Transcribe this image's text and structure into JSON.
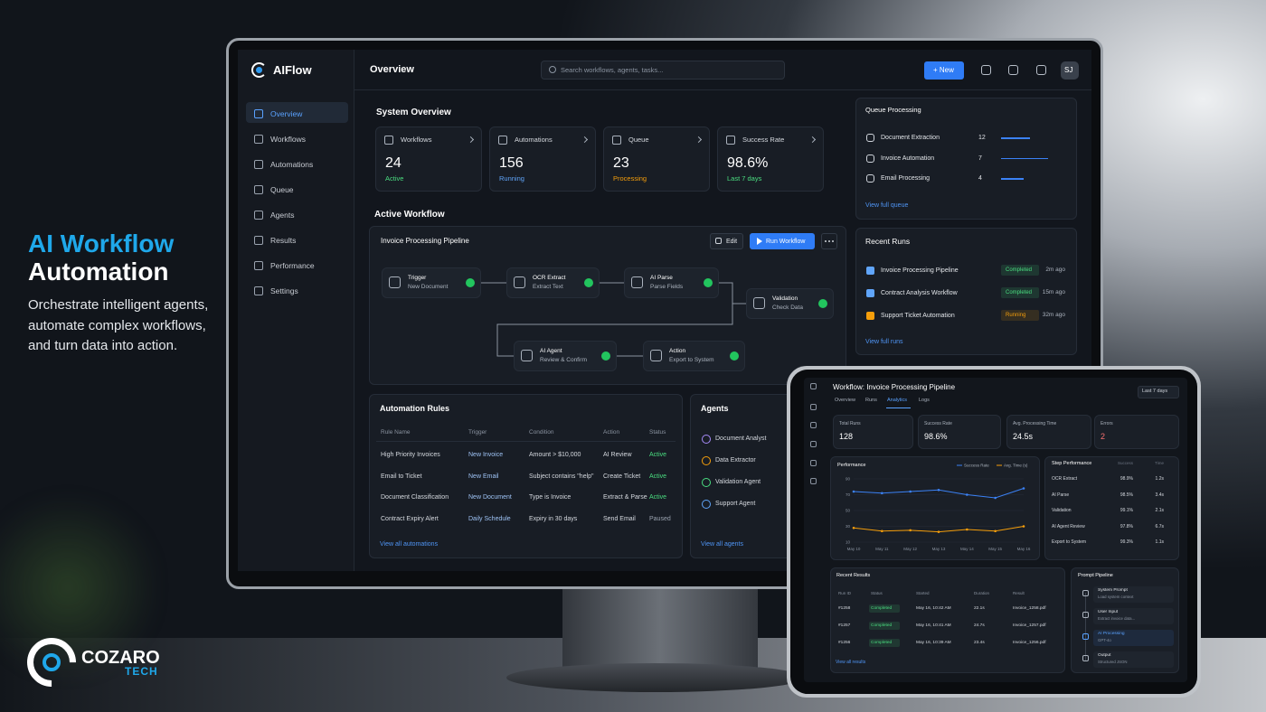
{
  "promo": {
    "title_line1": "AI Workflow",
    "title_line2": "Automation",
    "tagline": [
      "Orchestrate intelligent agents,",
      "automate complex workflows,",
      "and turn data into action."
    ]
  },
  "brand": {
    "name": "COZARO",
    "suffix": "TECH"
  },
  "app": {
    "logo": "AIFlow",
    "page_title": "Overview",
    "search_placeholder": "Search workflows, agents, tasks...",
    "new_button": "+ New",
    "avatar": "SJ",
    "nav": [
      "Overview",
      "Workflows",
      "Automations",
      "Queue",
      "Agents",
      "Results",
      "Performance",
      "Settings"
    ],
    "system_overview": {
      "title": "System Overview",
      "cards": [
        {
          "label": "Workflows",
          "value": "24",
          "sub": "Active",
          "color": "#4ade80"
        },
        {
          "label": "Automations",
          "value": "156",
          "sub": "Running",
          "color": "#60a5fa"
        },
        {
          "label": "Queue",
          "value": "23",
          "sub": "Processing",
          "color": "#f59e0b"
        },
        {
          "label": "Success Rate",
          "value": "98.6%",
          "sub": "Last 7 days",
          "color": "#4ade80"
        }
      ]
    },
    "active_workflow": {
      "title": "Active Workflow",
      "name": "Invoice Processing Pipeline",
      "edit": "Edit",
      "run": "Run Workflow",
      "nodes": [
        {
          "title": "Trigger",
          "subtitle": "New Document"
        },
        {
          "title": "OCR Extract",
          "subtitle": "Extract Text"
        },
        {
          "title": "AI Parse",
          "subtitle": "Parse Fields"
        },
        {
          "title": "Validation",
          "subtitle": "Check Data"
        },
        {
          "title": "AI Agent",
          "subtitle": "Review & Confirm"
        },
        {
          "title": "Action",
          "subtitle": "Export to System"
        }
      ]
    },
    "automation_rules": {
      "title": "Automation Rules",
      "columns": [
        "Rule Name",
        "Trigger",
        "Condition",
        "Action",
        "Status"
      ],
      "rows": [
        [
          "High Priority Invoices",
          "New Invoice",
          "Amount > $10,000",
          "AI Review",
          "Active"
        ],
        [
          "Email to Ticket",
          "New Email",
          "Subject contains \"help\"",
          "Create Ticket",
          "Active"
        ],
        [
          "Document Classification",
          "New Document",
          "Type is Invoice",
          "Extract & Parse",
          "Active"
        ],
        [
          "Contract Expiry Alert",
          "Daily Schedule",
          "Expiry in 30 days",
          "Send Email",
          "Paused"
        ]
      ],
      "status_colors": [
        "#4ade80",
        "#4ade80",
        "#4ade80",
        "#9aa3af"
      ],
      "link": "View all automations"
    },
    "agents": {
      "title": "Agents",
      "items": [
        {
          "name": "Document Analyst",
          "color": "#a78bfa"
        },
        {
          "name": "Data Extractor",
          "color": "#f59e0b"
        },
        {
          "name": "Validation Agent",
          "color": "#4ade80"
        },
        {
          "name": "Support Agent",
          "color": "#60a5fa"
        }
      ],
      "link": "View all agents"
    },
    "queue": {
      "title": "Queue Processing",
      "items": [
        {
          "name": "Document Extraction",
          "count": "12"
        },
        {
          "name": "Invoice Automation",
          "count": "7"
        },
        {
          "name": "Email Processing",
          "count": "4"
        }
      ],
      "link": "View full queue"
    },
    "recent_runs": {
      "title": "Recent Runs",
      "items": [
        {
          "name": "Invoice Processing Pipeline",
          "status": "Completed",
          "time": "2m ago",
          "icon_color": "#60a5fa",
          "status_color": "#4ade80"
        },
        {
          "name": "Contract Analysis Workflow",
          "status": "Completed",
          "time": "15m ago",
          "icon_color": "#60a5fa",
          "status_color": "#4ade80"
        },
        {
          "name": "Support Ticket Automation",
          "status": "Running",
          "time": "32m ago",
          "icon_color": "#f59e0b",
          "status_color": "#f59e0b"
        }
      ],
      "link": "View full runs"
    }
  },
  "tablet": {
    "title": "Workflow: Invoice Processing Pipeline",
    "range": "Last 7 days",
    "tabs": [
      "Overview",
      "Runs",
      "Analytics",
      "Logs"
    ],
    "stats": [
      {
        "label": "Total Runs",
        "value": "128"
      },
      {
        "label": "Success Rate",
        "value": "98.6%"
      },
      {
        "label": "Avg. Processing Time",
        "value": "24.5s"
      },
      {
        "label": "Errors",
        "value": "2"
      }
    ],
    "performance": {
      "type": "line",
      "title": "Performance",
      "x": [
        "May 10",
        "May 11",
        "May 12",
        "May 13",
        "May 14",
        "May 15",
        "May 16"
      ],
      "series": [
        {
          "name": "Success Rate",
          "color": "#3b82f6",
          "values": [
            74,
            72,
            74,
            76,
            70,
            66,
            78
          ]
        },
        {
          "name": "Avg. Time (s)",
          "color": "#f59e0b",
          "values": [
            28,
            24,
            25,
            23,
            26,
            24,
            30
          ]
        }
      ],
      "ylim": [
        10,
        90
      ],
      "yticks": [
        10,
        30,
        50,
        70,
        90
      ],
      "grid": true
    },
    "step_performance": {
      "title": "Step Performance",
      "columns": [
        "Success",
        "Time"
      ],
      "rows": [
        [
          "OCR Extract",
          "98.9%",
          "1.2s"
        ],
        [
          "AI Parse",
          "98.5%",
          "3.4s"
        ],
        [
          "Validation",
          "99.1%",
          "2.1s"
        ],
        [
          "AI Agent Review",
          "97.8%",
          "6.7s"
        ],
        [
          "Export to System",
          "99.3%",
          "1.1s"
        ]
      ]
    },
    "recent_results": {
      "title": "Recent Results",
      "columns": [
        "Run ID",
        "Status",
        "Started",
        "Duration",
        "Result"
      ],
      "rows": [
        [
          "#1258",
          "Completed",
          "May 16, 10:42 AM",
          "22.1s",
          "Invoice_1258.pdf"
        ],
        [
          "#1257",
          "Completed",
          "May 16, 10:41 AM",
          "24.7s",
          "Invoice_1257.pdf"
        ],
        [
          "#1256",
          "Completed",
          "May 16, 10:39 AM",
          "23.4s",
          "Invoice_1256.pdf"
        ]
      ],
      "link": "View all results"
    },
    "prompt_pipeline": {
      "title": "Prompt Pipeline",
      "steps": [
        {
          "title": "System Prompt",
          "detail": "Load system context"
        },
        {
          "title": "User Input",
          "detail": "Extract invoice data..."
        },
        {
          "title": "AI Processing",
          "detail": "GPT-4o"
        },
        {
          "title": "Output",
          "detail": "Structured JSON"
        }
      ]
    }
  }
}
